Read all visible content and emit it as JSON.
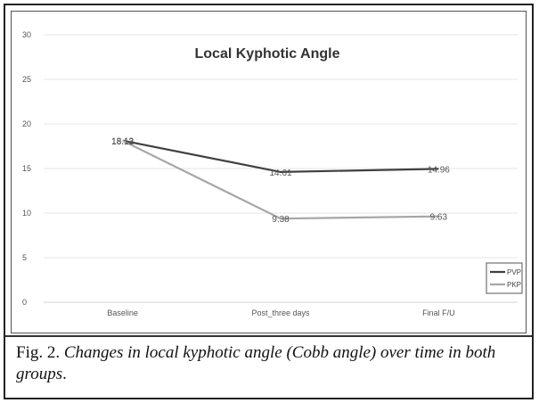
{
  "caption": {
    "label": "Fig. 2.",
    "text": "Changes in local kyphotic angle (Cobb angle) over time in both groups",
    "end": "."
  },
  "chart_data": {
    "type": "line",
    "title": "Local Kyphotic Angle",
    "categories": [
      "Baseline",
      "Post_three days",
      "Final F/U"
    ],
    "ylim": [
      0,
      30
    ],
    "yticks": [
      0,
      5,
      10,
      15,
      20,
      25,
      30
    ],
    "grid": true,
    "legend_position": "bottom-right",
    "series": [
      {
        "name": "PVP",
        "values": [
          18.13,
          14.61,
          14.96
        ],
        "labels": [
          "18.13",
          "14.61",
          "14.96"
        ],
        "color": "#404040"
      },
      {
        "name": "PKP",
        "values": [
          18.12,
          9.38,
          9.63
        ],
        "labels": [
          "18.12",
          "9.38",
          "9.63"
        ],
        "color": "#a6a6a6"
      }
    ]
  }
}
